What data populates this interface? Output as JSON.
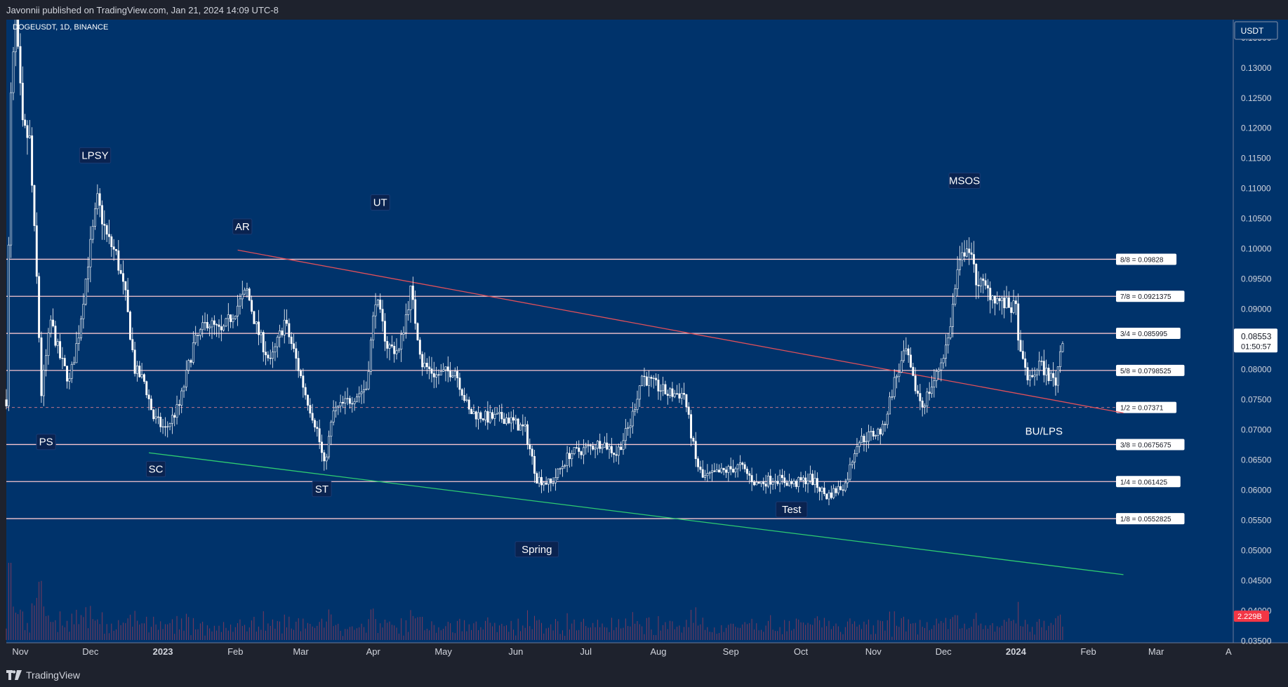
{
  "header": {
    "publisher": "Javonnii published on TradingView.com, Jan 21, 2024 14:09 UTC-8"
  },
  "footer": {
    "brand": "TradingView",
    "logo_icon": "tradingview-logo-icon"
  },
  "chart_data": {
    "type": "candlestick",
    "title": "DOGEUSDT, 1D, BINANCE",
    "currency_button": "USDT",
    "colors": {
      "background": "#00336b",
      "panel": "#1e222d",
      "candle": "#ffffff",
      "level_line": "#f7c6cf",
      "resistance_line": "#e0505a",
      "support_line": "#2ecc71",
      "volume": "#8a3b5a",
      "last_price_bg": "#ffffff",
      "volume_badge_bg": "#f23645"
    },
    "y_axis": {
      "scale": "linear",
      "range": [
        0.0347,
        0.138
      ],
      "ticks": [
        "0.13500",
        "0.13000",
        "0.12500",
        "0.12000",
        "0.11500",
        "0.11000",
        "0.10500",
        "0.10000",
        "0.09500",
        "0.09000",
        "0.08500",
        "0.08000",
        "0.07500",
        "0.07000",
        "0.06500",
        "0.06000",
        "0.05500",
        "0.05000",
        "0.04500",
        "0.04000",
        "0.03500"
      ]
    },
    "x_axis": {
      "range": [
        "2022-10-26",
        "2024-04-03"
      ],
      "ticks": [
        {
          "date": "2022-11-01",
          "label": "Nov"
        },
        {
          "date": "2022-12-01",
          "label": "Dec"
        },
        {
          "date": "2023-01-01",
          "label": "2023",
          "bold": true
        },
        {
          "date": "2023-02-01",
          "label": "Feb"
        },
        {
          "date": "2023-03-01",
          "label": "Mar"
        },
        {
          "date": "2023-04-01",
          "label": "Apr"
        },
        {
          "date": "2023-05-01",
          "label": "May"
        },
        {
          "date": "2023-06-01",
          "label": "Jun"
        },
        {
          "date": "2023-07-01",
          "label": "Jul"
        },
        {
          "date": "2023-08-01",
          "label": "Aug"
        },
        {
          "date": "2023-09-01",
          "label": "Sep"
        },
        {
          "date": "2023-10-01",
          "label": "Oct"
        },
        {
          "date": "2023-11-01",
          "label": "Nov"
        },
        {
          "date": "2023-12-01",
          "label": "Dec"
        },
        {
          "date": "2024-01-01",
          "label": "2024",
          "bold": true
        },
        {
          "date": "2024-02-01",
          "label": "Feb"
        },
        {
          "date": "2024-03-01",
          "label": "Mar"
        },
        {
          "date": "2024-04-01",
          "label": "A"
        }
      ]
    },
    "price_path": [
      [
        "2022-10-26",
        0.075
      ],
      [
        "2022-10-28",
        0.125
      ],
      [
        "2022-10-30",
        0.138
      ],
      [
        "2022-11-02",
        0.12
      ],
      [
        "2022-11-05",
        0.118
      ],
      [
        "2022-11-08",
        0.095
      ],
      [
        "2022-11-10",
        0.076
      ],
      [
        "2022-11-14",
        0.088
      ],
      [
        "2022-11-18",
        0.082
      ],
      [
        "2022-11-22",
        0.078
      ],
      [
        "2022-11-26",
        0.086
      ],
      [
        "2022-11-30",
        0.098
      ],
      [
        "2022-12-04",
        0.108
      ],
      [
        "2022-12-08",
        0.102
      ],
      [
        "2022-12-12",
        0.099
      ],
      [
        "2022-12-16",
        0.092
      ],
      [
        "2022-12-20",
        0.08
      ],
      [
        "2022-12-24",
        0.078
      ],
      [
        "2022-12-28",
        0.072
      ],
      [
        "2023-01-02",
        0.07
      ],
      [
        "2023-01-08",
        0.074
      ],
      [
        "2023-01-14",
        0.084
      ],
      [
        "2023-01-20",
        0.088
      ],
      [
        "2023-01-26",
        0.086
      ],
      [
        "2023-02-01",
        0.09
      ],
      [
        "2023-02-06",
        0.093
      ],
      [
        "2023-02-10",
        0.087
      ],
      [
        "2023-02-16",
        0.081
      ],
      [
        "2023-02-22",
        0.088
      ],
      [
        "2023-02-26",
        0.083
      ],
      [
        "2023-03-03",
        0.076
      ],
      [
        "2023-03-08",
        0.07
      ],
      [
        "2023-03-11",
        0.064
      ],
      [
        "2023-03-15",
        0.073
      ],
      [
        "2023-03-22",
        0.075
      ],
      [
        "2023-03-29",
        0.077
      ],
      [
        "2023-04-02",
        0.092
      ],
      [
        "2023-04-07",
        0.084
      ],
      [
        "2023-04-12",
        0.083
      ],
      [
        "2023-04-17",
        0.093
      ],
      [
        "2023-04-22",
        0.081
      ],
      [
        "2023-04-28",
        0.079
      ],
      [
        "2023-05-06",
        0.08
      ],
      [
        "2023-05-12",
        0.073
      ],
      [
        "2023-05-20",
        0.072
      ],
      [
        "2023-05-28",
        0.072
      ],
      [
        "2023-06-05",
        0.07
      ],
      [
        "2023-06-10",
        0.062
      ],
      [
        "2023-06-16",
        0.061
      ],
      [
        "2023-06-24",
        0.066
      ],
      [
        "2023-07-02",
        0.067
      ],
      [
        "2023-07-08",
        0.068
      ],
      [
        "2023-07-14",
        0.066
      ],
      [
        "2023-07-20",
        0.071
      ],
      [
        "2023-07-25",
        0.079
      ],
      [
        "2023-07-28",
        0.078
      ],
      [
        "2023-08-05",
        0.076
      ],
      [
        "2023-08-12",
        0.076
      ],
      [
        "2023-08-17",
        0.065
      ],
      [
        "2023-08-20",
        0.062
      ],
      [
        "2023-08-28",
        0.063
      ],
      [
        "2023-09-05",
        0.064
      ],
      [
        "2023-09-12",
        0.061
      ],
      [
        "2023-09-20",
        0.062
      ],
      [
        "2023-09-28",
        0.061
      ],
      [
        "2023-10-05",
        0.062
      ],
      [
        "2023-10-12",
        0.059
      ],
      [
        "2023-10-20",
        0.061
      ],
      [
        "2023-10-25",
        0.068
      ],
      [
        "2023-10-30",
        0.069
      ],
      [
        "2023-11-05",
        0.07
      ],
      [
        "2023-11-10",
        0.078
      ],
      [
        "2023-11-15",
        0.083
      ],
      [
        "2023-11-18",
        0.078
      ],
      [
        "2023-11-22",
        0.074
      ],
      [
        "2023-11-28",
        0.079
      ],
      [
        "2023-12-03",
        0.085
      ],
      [
        "2023-12-07",
        0.096
      ],
      [
        "2023-12-11",
        0.101
      ],
      [
        "2023-12-15",
        0.095
      ],
      [
        "2023-12-20",
        0.093
      ],
      [
        "2023-12-26",
        0.091
      ],
      [
        "2024-01-01",
        0.09
      ],
      [
        "2024-01-03",
        0.082
      ],
      [
        "2024-01-07",
        0.078
      ],
      [
        "2024-01-11",
        0.081
      ],
      [
        "2024-01-15",
        0.079
      ],
      [
        "2024-01-18",
        0.078
      ],
      [
        "2024-01-21",
        0.0855
      ]
    ],
    "levels": [
      {
        "value": 0.09828,
        "label": "8/8 = 0.09828"
      },
      {
        "value": 0.0921375,
        "label": "7/8 = 0.0921375"
      },
      {
        "value": 0.085995,
        "label": "3/4 = 0.085995"
      },
      {
        "value": 0.0798525,
        "label": "5/8 = 0.0798525"
      },
      {
        "value": 0.07371,
        "label": "1/2 = 0.07371",
        "dashed": true
      },
      {
        "value": 0.0675675,
        "label": "3/8 = 0.0675675"
      },
      {
        "value": 0.061425,
        "label": "1/4 = 0.061425"
      },
      {
        "value": 0.0552825,
        "label": "1/8 = 0.0552825"
      }
    ],
    "trendlines": [
      {
        "name": "resistance",
        "from": [
          "2023-02-02",
          0.0998
        ],
        "to": [
          "2024-02-16",
          0.0728
        ]
      },
      {
        "name": "support",
        "from": [
          "2022-12-26",
          0.0662
        ],
        "to": [
          "2024-02-16",
          0.046
        ]
      }
    ],
    "annotations": [
      {
        "text": "LPSY",
        "date": "2022-12-03",
        "value": 0.1155
      },
      {
        "text": "PS",
        "date": "2022-11-12",
        "value": 0.068
      },
      {
        "text": "SC",
        "date": "2022-12-29",
        "value": 0.0635
      },
      {
        "text": "AR",
        "date": "2023-02-04",
        "value": 0.1037
      },
      {
        "text": "ST",
        "date": "2023-03-10",
        "value": 0.0602
      },
      {
        "text": "UT",
        "date": "2023-04-04",
        "value": 0.1077
      },
      {
        "text": "Spring",
        "date": "2023-06-10",
        "value": 0.0502
      },
      {
        "text": "Test",
        "date": "2023-09-27",
        "value": 0.0568
      },
      {
        "text": "MSOS",
        "date": "2023-12-10",
        "value": 0.1113
      },
      {
        "text": "BU/LPS",
        "date": "2024-01-13",
        "value": 0.0698,
        "plain": true
      }
    ],
    "last_price": {
      "value": 0.0855,
      "label": "0.08553",
      "countdown": "01:50:57"
    },
    "volume_badge": {
      "label": "2.229B",
      "value": 0.0391
    }
  }
}
